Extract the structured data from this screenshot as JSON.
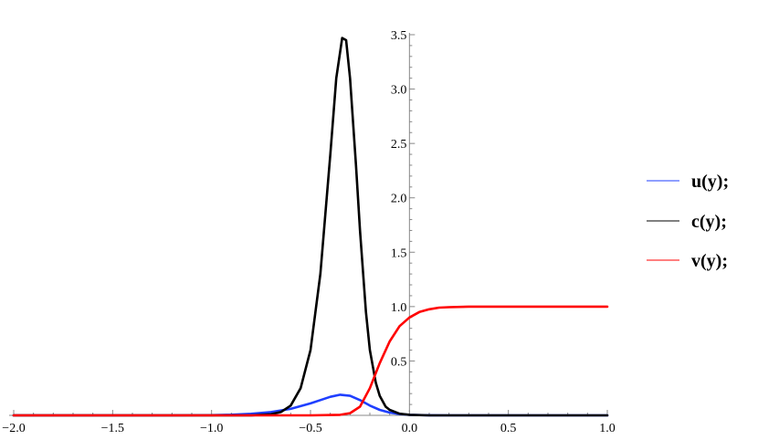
{
  "chart_data": {
    "type": "line",
    "xlim": [
      -2.0,
      1.0
    ],
    "ylim": [
      0,
      3.5
    ],
    "x_ticks": [
      -2.0,
      -1.5,
      -1.0,
      -0.5,
      0.0,
      0.5,
      1.0
    ],
    "x_tick_labels": [
      "−2.0",
      "−1.5",
      "−1.0",
      "−0.5",
      "0.0",
      "0.5",
      "1.0"
    ],
    "y_ticks": [
      0.5,
      1.0,
      1.5,
      2.0,
      2.5,
      3.0,
      3.5
    ],
    "y_tick_labels": [
      "0.5",
      "1.0",
      "1.5",
      "2.0",
      "2.5",
      "3.0",
      "3.5"
    ],
    "grid": false,
    "legend_position": "right",
    "series": [
      {
        "name": "u(y);",
        "color": "#1f3fff",
        "x": [
          -2.0,
          -1.2,
          -1.0,
          -0.9,
          -0.8,
          -0.7,
          -0.6,
          -0.5,
          -0.45,
          -0.4,
          -0.35,
          -0.3,
          -0.25,
          -0.2,
          -0.15,
          -0.1,
          -0.05,
          0.0,
          0.1,
          0.2,
          0.5,
          1.0
        ],
        "y": [
          0.0,
          0.0,
          0.002,
          0.006,
          0.014,
          0.03,
          0.06,
          0.11,
          0.14,
          0.17,
          0.19,
          0.18,
          0.14,
          0.09,
          0.05,
          0.025,
          0.012,
          0.005,
          0.001,
          0.0,
          0.0,
          0.0
        ]
      },
      {
        "name": "c(y);",
        "color": "#000000",
        "x": [
          -2.0,
          -0.8,
          -0.7,
          -0.65,
          -0.6,
          -0.55,
          -0.5,
          -0.45,
          -0.4,
          -0.37,
          -0.34,
          -0.32,
          -0.3,
          -0.27,
          -0.25,
          -0.22,
          -0.2,
          -0.17,
          -0.15,
          -0.12,
          -0.1,
          -0.05,
          0.0,
          0.1,
          0.2,
          1.0
        ],
        "y": [
          0.0,
          0.0,
          0.01,
          0.03,
          0.09,
          0.25,
          0.6,
          1.3,
          2.4,
          3.1,
          3.47,
          3.45,
          3.1,
          2.3,
          1.7,
          0.95,
          0.6,
          0.3,
          0.18,
          0.08,
          0.05,
          0.015,
          0.005,
          0.0,
          0.0,
          0.0
        ]
      },
      {
        "name": "v(y);",
        "color": "#ff0000",
        "x": [
          -2.0,
          -0.5,
          -0.35,
          -0.3,
          -0.25,
          -0.2,
          -0.15,
          -0.1,
          -0.05,
          0.0,
          0.05,
          0.1,
          0.15,
          0.2,
          0.3,
          0.5,
          1.0
        ],
        "y": [
          0.0,
          0.0,
          0.005,
          0.02,
          0.08,
          0.25,
          0.48,
          0.68,
          0.82,
          0.9,
          0.95,
          0.975,
          0.99,
          0.995,
          1.0,
          1.0,
          1.0
        ]
      }
    ]
  }
}
